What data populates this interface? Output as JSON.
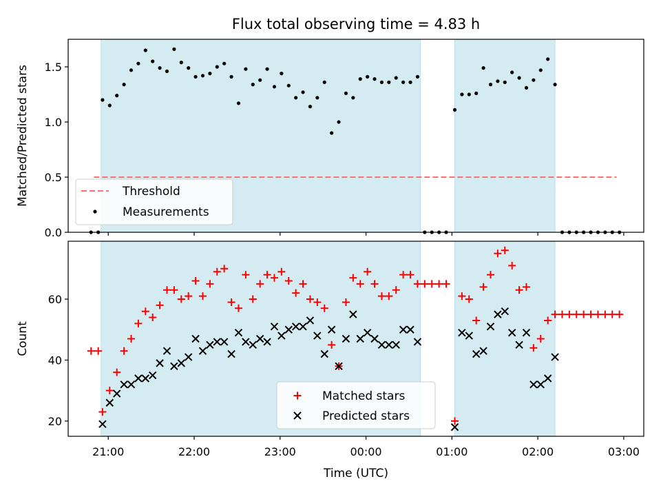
{
  "figure": {
    "title": "Flux total observing time = 4.83 h",
    "xlabel": "Time (UTC)",
    "x_ticks": [
      "21:00",
      "22:00",
      "23:00",
      "00:00",
      "01:00",
      "02:00",
      "03:00"
    ],
    "shade_color": "#d4ebf1",
    "shaded_intervals": [
      [
        "20:55",
        "00:38"
      ],
      [
        "01:02",
        "02:12"
      ]
    ]
  },
  "chart_data": [
    {
      "type": "scatter",
      "ylabel": "Matched/Predicted stars",
      "xlim": [
        "20:32",
        "03:14"
      ],
      "ylim": [
        0,
        1.75
      ],
      "y_ticks": [
        "0.0",
        "0.5",
        "1.0",
        "1.5"
      ],
      "legend": {
        "placement": "lower-left",
        "entries": [
          "Threshold",
          "Measurements"
        ]
      },
      "threshold": {
        "name": "Threshold",
        "value": 0.5,
        "x": [
          "20:50",
          "02:55"
        ],
        "color": "#ff6f6f"
      },
      "series": [
        {
          "name": "Measurements",
          "color": "#000000",
          "points": [
            [
              "20:48",
              0
            ],
            [
              "20:53",
              0
            ],
            [
              "20:56",
              1.2
            ],
            [
              "21:01",
              1.15
            ],
            [
              "21:06",
              1.24
            ],
            [
              "21:11",
              1.34
            ],
            [
              "21:16",
              1.47
            ],
            [
              "21:21",
              1.53
            ],
            [
              "21:26",
              1.65
            ],
            [
              "21:31",
              1.55
            ],
            [
              "21:36",
              1.49
            ],
            [
              "21:41",
              1.46
            ],
            [
              "21:46",
              1.66
            ],
            [
              "21:51",
              1.54
            ],
            [
              "21:56",
              1.49
            ],
            [
              "22:01",
              1.41
            ],
            [
              "22:06",
              1.42
            ],
            [
              "22:11",
              1.44
            ],
            [
              "22:16",
              1.5
            ],
            [
              "22:21",
              1.53
            ],
            [
              "22:26",
              1.41
            ],
            [
              "22:31",
              1.17
            ],
            [
              "22:36",
              1.48
            ],
            [
              "22:41",
              1.34
            ],
            [
              "22:46",
              1.38
            ],
            [
              "22:51",
              1.48
            ],
            [
              "22:56",
              1.32
            ],
            [
              "23:01",
              1.44
            ],
            [
              "23:06",
              1.33
            ],
            [
              "23:11",
              1.22
            ],
            [
              "23:16",
              1.27
            ],
            [
              "23:21",
              1.14
            ],
            [
              "23:26",
              1.22
            ],
            [
              "23:31",
              1.36
            ],
            [
              "23:36",
              0.9
            ],
            [
              "23:41",
              1.0
            ],
            [
              "23:46",
              1.26
            ],
            [
              "23:51",
              1.22
            ],
            [
              "23:56",
              1.39
            ],
            [
              "00:01",
              1.41
            ],
            [
              "00:06",
              1.39
            ],
            [
              "00:11",
              1.36
            ],
            [
              "00:16",
              1.36
            ],
            [
              "00:21",
              1.4
            ],
            [
              "00:26",
              1.36
            ],
            [
              "00:31",
              1.36
            ],
            [
              "00:36",
              1.41
            ],
            [
              "00:41",
              0
            ],
            [
              "00:46",
              0
            ],
            [
              "00:51",
              0
            ],
            [
              "00:56",
              0
            ],
            [
              "01:02",
              1.11
            ],
            [
              "01:07",
              1.25
            ],
            [
              "01:12",
              1.25
            ],
            [
              "01:17",
              1.26
            ],
            [
              "01:22",
              1.49
            ],
            [
              "01:27",
              1.34
            ],
            [
              "01:32",
              1.37
            ],
            [
              "01:37",
              1.36
            ],
            [
              "01:42",
              1.45
            ],
            [
              "01:47",
              1.4
            ],
            [
              "01:52",
              1.31
            ],
            [
              "01:57",
              1.38
            ],
            [
              "02:02",
              1.47
            ],
            [
              "02:07",
              1.57
            ],
            [
              "02:12",
              1.34
            ],
            [
              "02:17",
              0
            ],
            [
              "02:22",
              0
            ],
            [
              "02:27",
              0
            ],
            [
              "02:32",
              0
            ],
            [
              "02:37",
              0
            ],
            [
              "02:42",
              0
            ],
            [
              "02:47",
              0
            ],
            [
              "02:52",
              0
            ],
            [
              "02:57",
              0
            ]
          ]
        }
      ]
    },
    {
      "type": "scatter",
      "ylabel": "Count",
      "xlim": [
        "20:32",
        "03:14"
      ],
      "ylim": [
        15,
        79
      ],
      "y_ticks": [
        "20",
        "40",
        "60"
      ],
      "legend": {
        "placement": "lower-center",
        "entries": [
          "Matched stars",
          "Predicted stars"
        ]
      },
      "series": [
        {
          "name": "Matched stars",
          "marker": "plus",
          "color": "#ff0000",
          "points": [
            [
              "20:48",
              43
            ],
            [
              "20:53",
              43
            ],
            [
              "20:56",
              23
            ],
            [
              "21:01",
              30
            ],
            [
              "21:06",
              36
            ],
            [
              "21:11",
              43
            ],
            [
              "21:16",
              47
            ],
            [
              "21:21",
              52
            ],
            [
              "21:26",
              56
            ],
            [
              "21:31",
              54
            ],
            [
              "21:36",
              58
            ],
            [
              "21:41",
              63
            ],
            [
              "21:46",
              63
            ],
            [
              "21:51",
              60
            ],
            [
              "21:56",
              61
            ],
            [
              "22:01",
              66
            ],
            [
              "22:06",
              61
            ],
            [
              "22:11",
              65
            ],
            [
              "22:16",
              69
            ],
            [
              "22:21",
              70
            ],
            [
              "22:26",
              59
            ],
            [
              "22:31",
              57
            ],
            [
              "22:36",
              68
            ],
            [
              "22:41",
              60
            ],
            [
              "22:46",
              65
            ],
            [
              "22:51",
              68
            ],
            [
              "22:56",
              67
            ],
            [
              "23:01",
              69
            ],
            [
              "23:06",
              66
            ],
            [
              "23:11",
              62
            ],
            [
              "23:16",
              65
            ],
            [
              "23:21",
              60
            ],
            [
              "23:26",
              59
            ],
            [
              "23:31",
              57
            ],
            [
              "23:36",
              45
            ],
            [
              "23:41",
              38
            ],
            [
              "23:46",
              59
            ],
            [
              "23:51",
              67
            ],
            [
              "23:56",
              65
            ],
            [
              "00:01",
              69
            ],
            [
              "00:06",
              65
            ],
            [
              "00:11",
              61
            ],
            [
              "00:16",
              61
            ],
            [
              "00:21",
              63
            ],
            [
              "00:26",
              68
            ],
            [
              "00:31",
              68
            ],
            [
              "00:36",
              65
            ],
            [
              "00:41",
              65
            ],
            [
              "00:46",
              65
            ],
            [
              "00:51",
              65
            ],
            [
              "00:56",
              65
            ],
            [
              "01:02",
              20
            ],
            [
              "01:07",
              61
            ],
            [
              "01:12",
              60
            ],
            [
              "01:17",
              53
            ],
            [
              "01:22",
              64
            ],
            [
              "01:27",
              68
            ],
            [
              "01:32",
              75
            ],
            [
              "01:37",
              76
            ],
            [
              "01:42",
              71
            ],
            [
              "01:47",
              63
            ],
            [
              "01:52",
              64
            ],
            [
              "01:57",
              44
            ],
            [
              "02:02",
              47
            ],
            [
              "02:07",
              53
            ],
            [
              "02:12",
              55
            ],
            [
              "02:17",
              55
            ],
            [
              "02:22",
              55
            ],
            [
              "02:27",
              55
            ],
            [
              "02:32",
              55
            ],
            [
              "02:37",
              55
            ],
            [
              "02:42",
              55
            ],
            [
              "02:47",
              55
            ],
            [
              "02:52",
              55
            ],
            [
              "02:57",
              55
            ]
          ]
        },
        {
          "name": "Predicted stars",
          "marker": "cross",
          "color": "#000000",
          "points": [
            [
              "20:56",
              19
            ],
            [
              "21:01",
              26
            ],
            [
              "21:06",
              29
            ],
            [
              "21:11",
              32
            ],
            [
              "21:16",
              32
            ],
            [
              "21:21",
              34
            ],
            [
              "21:26",
              34
            ],
            [
              "21:31",
              35
            ],
            [
              "21:36",
              39
            ],
            [
              "21:41",
              43
            ],
            [
              "21:46",
              38
            ],
            [
              "21:51",
              39
            ],
            [
              "21:56",
              41
            ],
            [
              "22:01",
              47
            ],
            [
              "22:06",
              43
            ],
            [
              "22:11",
              45
            ],
            [
              "22:16",
              46
            ],
            [
              "22:21",
              46
            ],
            [
              "22:26",
              42
            ],
            [
              "22:31",
              49
            ],
            [
              "22:36",
              46
            ],
            [
              "22:41",
              45
            ],
            [
              "22:46",
              47
            ],
            [
              "22:51",
              46
            ],
            [
              "22:56",
              51
            ],
            [
              "23:01",
              48
            ],
            [
              "23:06",
              50
            ],
            [
              "23:11",
              51
            ],
            [
              "23:16",
              51
            ],
            [
              "23:21",
              53
            ],
            [
              "23:26",
              48
            ],
            [
              "23:31",
              42
            ],
            [
              "23:36",
              50
            ],
            [
              "23:41",
              38
            ],
            [
              "23:46",
              47
            ],
            [
              "23:51",
              55
            ],
            [
              "23:56",
              47
            ],
            [
              "00:01",
              49
            ],
            [
              "00:06",
              47
            ],
            [
              "00:11",
              45
            ],
            [
              "00:16",
              45
            ],
            [
              "00:21",
              45
            ],
            [
              "00:26",
              50
            ],
            [
              "00:31",
              50
            ],
            [
              "00:36",
              46
            ],
            [
              "01:02",
              18
            ],
            [
              "01:07",
              49
            ],
            [
              "01:12",
              48
            ],
            [
              "01:17",
              42
            ],
            [
              "01:22",
              43
            ],
            [
              "01:27",
              51
            ],
            [
              "01:32",
              55
            ],
            [
              "01:37",
              56
            ],
            [
              "01:42",
              49
            ],
            [
              "01:47",
              45
            ],
            [
              "01:52",
              49
            ],
            [
              "01:57",
              32
            ],
            [
              "02:02",
              32
            ],
            [
              "02:07",
              34
            ],
            [
              "02:12",
              41
            ]
          ]
        }
      ]
    }
  ]
}
